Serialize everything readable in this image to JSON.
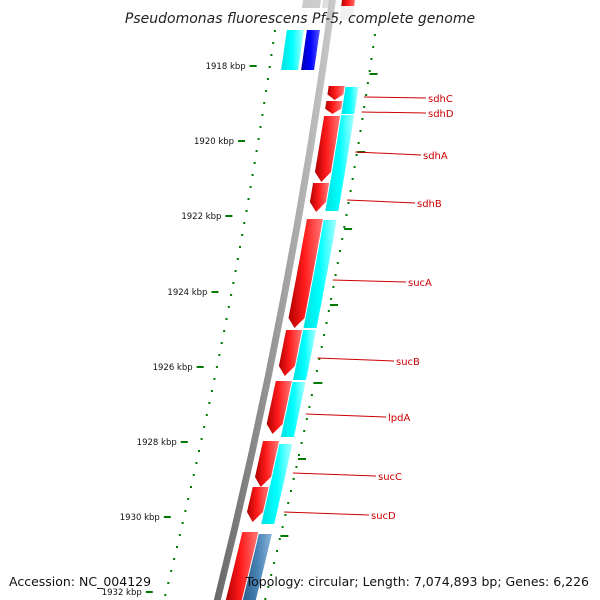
{
  "title": "Pseudomonas fluorescens Pf-5, complete genome",
  "accession": "Accession: NC_004129",
  "topology": "Topology: circular; Length: 7,074,893 bp; Genes: 6,226",
  "ticks": [
    "1918 kbp",
    "1920 kbp",
    "1922 kbp",
    "1924 kbp",
    "1926 kbp",
    "1928 kbp",
    "1930 kbp",
    "1932 kbp"
  ],
  "genes": [
    "sdhC",
    "sdhD",
    "sdhA",
    "sdhB",
    "sucA",
    "sucB",
    "lpdA",
    "sucC",
    "sucD"
  ],
  "colors": {
    "backbone": "#8a8a8a",
    "gene_forward": "#ff0000",
    "cds_track": "#00ffff",
    "other_track": "#0000ff",
    "steel_track": "#4682b4",
    "gc_dots": "#007a00",
    "label": "#cc0000"
  }
}
